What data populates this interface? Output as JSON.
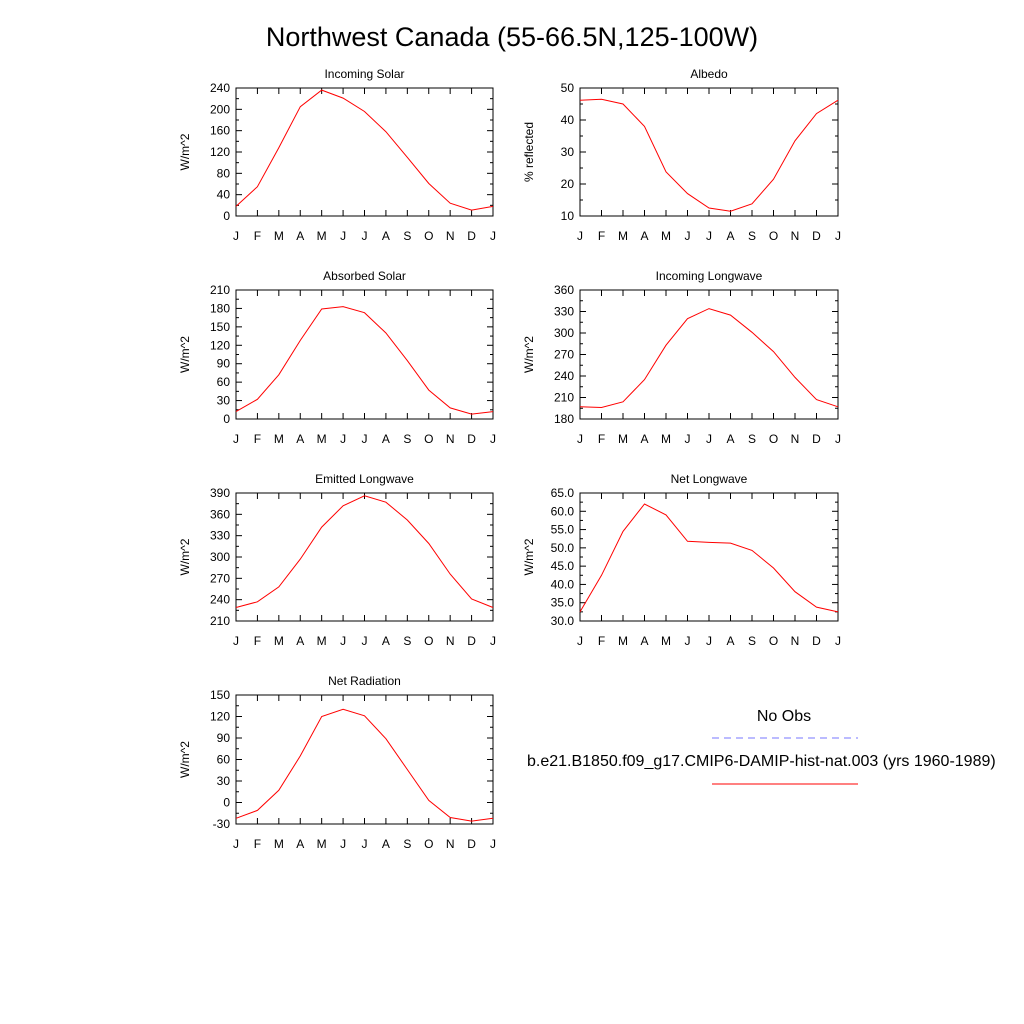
{
  "title": "Northwest Canada (55-66.5N,125-100W)",
  "chart_data": [
    {
      "type": "line",
      "title": "Incoming Solar",
      "ylabel": "W/m^2",
      "xlabel": "",
      "categories": [
        "J",
        "F",
        "M",
        "A",
        "M",
        "J",
        "J",
        "A",
        "S",
        "O",
        "N",
        "D",
        "J"
      ],
      "ylim": [
        0,
        240
      ],
      "yticks": [
        0,
        40,
        80,
        120,
        160,
        200,
        240
      ],
      "ytick_labels": [
        "0",
        "40",
        "80",
        "120",
        "160",
        "200",
        "240"
      ],
      "series": [
        {
          "values": [
            18,
            55,
            128,
            205,
            236,
            221,
            196,
            158,
            110,
            61,
            24,
            11,
            18
          ],
          "color": "#ff0000"
        }
      ]
    },
    {
      "type": "line",
      "title": "Albedo",
      "ylabel": "% reflected",
      "xlabel": "",
      "categories": [
        "J",
        "F",
        "M",
        "A",
        "M",
        "J",
        "J",
        "A",
        "S",
        "O",
        "N",
        "D",
        "J"
      ],
      "ylim": [
        10,
        50
      ],
      "yticks": [
        10,
        20,
        30,
        40,
        50
      ],
      "ytick_labels": [
        "10",
        "20",
        "30",
        "40",
        "50"
      ],
      "series": [
        {
          "values": [
            46.2,
            46.5,
            45,
            38,
            23.8,
            17,
            12.5,
            11.5,
            13.8,
            21.5,
            33.5,
            42,
            46.2
          ],
          "color": "#ff0000"
        }
      ]
    },
    {
      "type": "line",
      "title": "Absorbed Solar",
      "ylabel": "W/m^2",
      "xlabel": "",
      "categories": [
        "J",
        "F",
        "M",
        "A",
        "M",
        "J",
        "J",
        "A",
        "S",
        "O",
        "N",
        "D",
        "J"
      ],
      "ylim": [
        0,
        210
      ],
      "yticks": [
        0,
        30,
        60,
        90,
        120,
        150,
        180,
        210
      ],
      "ytick_labels": [
        "0",
        "30",
        "60",
        "90",
        "120",
        "150",
        "180",
        "210"
      ],
      "series": [
        {
          "values": [
            12,
            32,
            72,
            128,
            179,
            183,
            173,
            140,
            95,
            47,
            18,
            8,
            12
          ],
          "color": "#ff0000"
        }
      ]
    },
    {
      "type": "line",
      "title": "Incoming Longwave",
      "ylabel": "W/m^2",
      "xlabel": "",
      "categories": [
        "J",
        "F",
        "M",
        "A",
        "M",
        "J",
        "J",
        "A",
        "S",
        "O",
        "N",
        "D",
        "J"
      ],
      "ylim": [
        180,
        360
      ],
      "yticks": [
        180,
        210,
        240,
        270,
        300,
        330,
        360
      ],
      "ytick_labels": [
        "180",
        "210",
        "240",
        "270",
        "300",
        "330",
        "360"
      ],
      "series": [
        {
          "values": [
            197,
            196,
            204,
            235,
            283,
            320,
            334,
            325,
            301,
            274,
            238,
            207,
            197
          ],
          "color": "#ff0000"
        }
      ]
    },
    {
      "type": "line",
      "title": "Emitted Longwave",
      "ylabel": "W/m^2",
      "xlabel": "",
      "categories": [
        "J",
        "F",
        "M",
        "A",
        "M",
        "J",
        "J",
        "A",
        "S",
        "O",
        "N",
        "D",
        "J"
      ],
      "ylim": [
        210,
        390
      ],
      "yticks": [
        210,
        240,
        270,
        300,
        330,
        360,
        390
      ],
      "ytick_labels": [
        "210",
        "240",
        "270",
        "300",
        "330",
        "360",
        "390"
      ],
      "series": [
        {
          "values": [
            229,
            237,
            258,
            297,
            342,
            372,
            386,
            377,
            352,
            319,
            276,
            241,
            229
          ],
          "color": "#ff0000"
        }
      ]
    },
    {
      "type": "line",
      "title": "Net Longwave",
      "ylabel": "W/m^2",
      "xlabel": "",
      "categories": [
        "J",
        "F",
        "M",
        "A",
        "M",
        "J",
        "J",
        "A",
        "S",
        "O",
        "N",
        "D",
        "J"
      ],
      "ylim": [
        30,
        65
      ],
      "yticks": [
        30,
        35,
        40,
        45,
        50,
        55,
        60,
        65
      ],
      "ytick_labels": [
        "30.0",
        "35.0",
        "40.0",
        "45.0",
        "50.0",
        "55.0",
        "60.0",
        "65.0"
      ],
      "series": [
        {
          "values": [
            32.5,
            42.5,
            54.5,
            62,
            59,
            51.8,
            51.5,
            51.3,
            49.3,
            44.5,
            38,
            33.8,
            32.5
          ],
          "color": "#ff0000"
        }
      ]
    },
    {
      "type": "line",
      "title": "Net Radiation",
      "ylabel": "W/m^2",
      "xlabel": "",
      "categories": [
        "J",
        "F",
        "M",
        "A",
        "M",
        "J",
        "J",
        "A",
        "S",
        "O",
        "N",
        "D",
        "J"
      ],
      "ylim": [
        -30,
        150
      ],
      "yticks": [
        -30,
        0,
        30,
        60,
        90,
        120,
        150
      ],
      "ytick_labels": [
        "-30",
        "0",
        "30",
        "60",
        "90",
        "120",
        "150"
      ],
      "series": [
        {
          "values": [
            -22,
            -11,
            17,
            65,
            120,
            130,
            121,
            89,
            46,
            3,
            -21,
            -26,
            -22
          ],
          "color": "#ff0000"
        }
      ]
    }
  ],
  "legend": {
    "obs_label": "No Obs",
    "obs_color": "#7777ff",
    "model_label": "b.e21.B1850.f09_g17.CMIP6-DAMIP-hist-nat.003 (yrs 1960-1989)",
    "model_color": "#ff0000"
  }
}
